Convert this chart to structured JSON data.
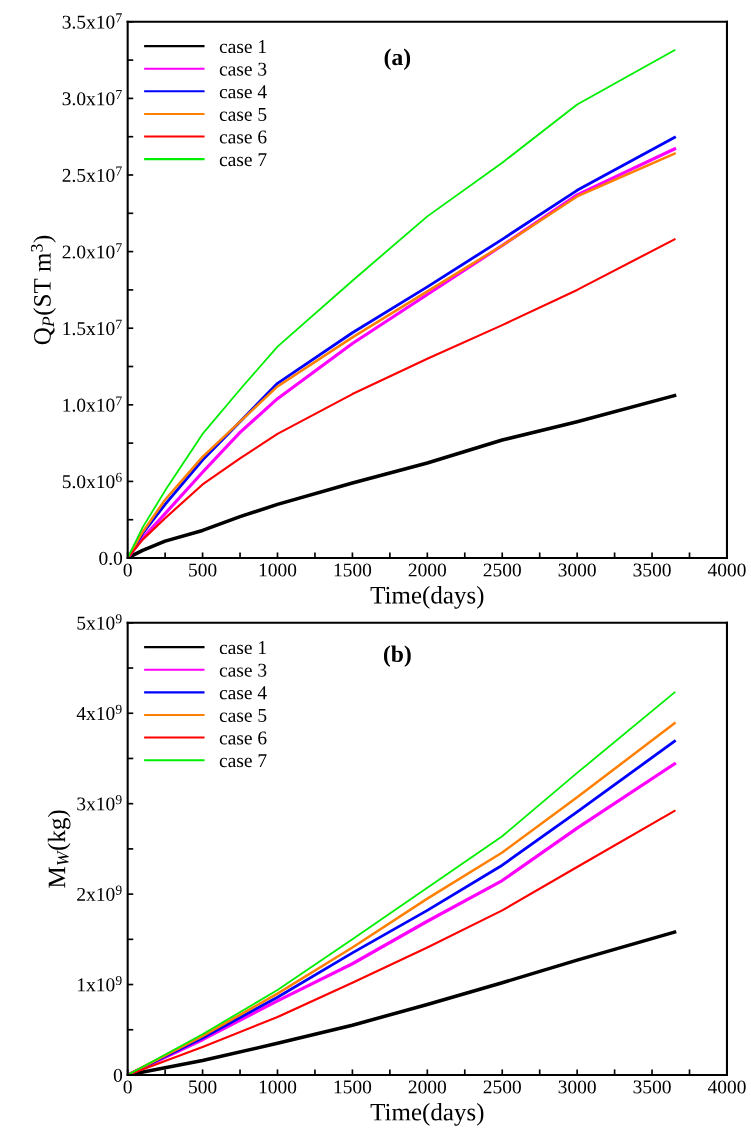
{
  "chart_data": [
    {
      "type": "line",
      "title": "(a)",
      "xlabel": "Time(days)",
      "ylabel": "Q$_{P}$(ST m$^{3}$)",
      "x": [
        0,
        100,
        250,
        500,
        750,
        1000,
        1500,
        2000,
        2500,
        3000,
        3650
      ],
      "series": [
        {
          "name": "case 1",
          "color": "#000000",
          "values": [
            0,
            500000,
            1100000,
            1800000,
            2700000,
            3500000,
            4900000,
            6200000,
            7700000,
            8900000,
            10600000
          ]
        },
        {
          "name": "case 3",
          "color": "#ff00ff",
          "values": [
            0,
            1300000,
            2900000,
            5600000,
            8200000,
            10400000,
            14000000,
            17200000,
            20400000,
            23700000,
            26700000
          ]
        },
        {
          "name": "case 4",
          "color": "#0000ff",
          "values": [
            0,
            1600000,
            3500000,
            6400000,
            8900000,
            11400000,
            14700000,
            17700000,
            20800000,
            24000000,
            27450000
          ]
        },
        {
          "name": "case 5",
          "color": "#ff7f00",
          "values": [
            0,
            1700000,
            3800000,
            6600000,
            8900000,
            11200000,
            14400000,
            17400000,
            20400000,
            23600000,
            26400000
          ]
        },
        {
          "name": "case 6",
          "color": "#ff0000",
          "values": [
            0,
            1200000,
            2600000,
            4800000,
            6500000,
            8100000,
            10700000,
            13000000,
            15200000,
            17500000,
            20800000
          ]
        },
        {
          "name": "case 7",
          "color": "#00ee00",
          "values": [
            0,
            2000000,
            4400000,
            8100000,
            11000000,
            13800000,
            18100000,
            22300000,
            25800000,
            29600000,
            33150000
          ]
        }
      ],
      "xlim": [
        0,
        4000
      ],
      "xticks": [
        0,
        {
          "value": 250,
          "label": null
        },
        500,
        {
          "value": 750,
          "label": null
        },
        1000,
        {
          "value": 1250,
          "label": null
        },
        1500,
        {
          "value": 1750,
          "label": null
        },
        2000,
        {
          "value": 2250,
          "label": null
        },
        2500,
        {
          "value": 2750,
          "label": null
        },
        3000,
        {
          "value": 3250,
          "label": null
        },
        3500,
        {
          "value": 3750,
          "label": null
        },
        4000
      ],
      "ylim": [
        0,
        35000000
      ],
      "yticks": [
        {
          "value": 0,
          "label": "0.0"
        },
        {
          "value": 2500000,
          "label": null
        },
        {
          "value": 5000000,
          "label": "5.0x10$^{6}$"
        },
        {
          "value": 7500000,
          "label": null
        },
        {
          "value": 10000000,
          "label": "1.0x10$^{7}$"
        },
        {
          "value": 12500000,
          "label": null
        },
        {
          "value": 15000000,
          "label": "1.5x10$^{7}$"
        },
        {
          "value": 17500000,
          "label": null
        },
        {
          "value": 20000000,
          "label": "2.0x10$^{7}$"
        },
        {
          "value": 22500000,
          "label": null
        },
        {
          "value": 25000000,
          "label": "2.5x10$^{7}$"
        },
        {
          "value": 27500000,
          "label": null
        },
        {
          "value": 30000000,
          "label": "3.0x10$^{7}$"
        },
        {
          "value": 32500000,
          "label": null
        },
        {
          "value": 35000000,
          "label": "3.5x10$^{7}$"
        }
      ],
      "legend": "top left",
      "grid": false,
      "line_style": "solid",
      "marker": "none"
    },
    {
      "type": "line",
      "title": "(b)",
      "xlabel": "Time(days)",
      "ylabel": "M$_{W}$(kg)",
      "x": [
        0,
        500,
        1000,
        1500,
        2000,
        2500,
        3000,
        3650
      ],
      "series": [
        {
          "name": "case 1",
          "color": "#000000",
          "values": [
            0,
            160000000,
            350000000,
            550000000,
            780000000,
            1020000000,
            1270000000,
            1580000000
          ]
        },
        {
          "name": "case 3",
          "color": "#ff00ff",
          "values": [
            0,
            390000000,
            820000000,
            1230000000,
            1700000000,
            2150000000,
            2730000000,
            3440000000
          ]
        },
        {
          "name": "case 4",
          "color": "#0000ff",
          "values": [
            0,
            410000000,
            860000000,
            1350000000,
            1820000000,
            2320000000,
            2910000000,
            3690000000
          ]
        },
        {
          "name": "case 5",
          "color": "#ff7f00",
          "values": [
            0,
            430000000,
            900000000,
            1410000000,
            1950000000,
            2460000000,
            3070000000,
            3890000000
          ]
        },
        {
          "name": "case 6",
          "color": "#ff0000",
          "values": [
            0,
            310000000,
            640000000,
            1020000000,
            1410000000,
            1820000000,
            2300000000,
            2920000000
          ]
        },
        {
          "name": "case 7",
          "color": "#00ee00",
          "values": [
            0,
            450000000,
            940000000,
            1500000000,
            2070000000,
            2640000000,
            3340000000,
            4230000000
          ]
        }
      ],
      "xlim": [
        0,
        4000
      ],
      "xticks": [
        0,
        {
          "value": 250,
          "label": null
        },
        500,
        {
          "value": 750,
          "label": null
        },
        1000,
        {
          "value": 1250,
          "label": null
        },
        1500,
        {
          "value": 1750,
          "label": null
        },
        2000,
        {
          "value": 2250,
          "label": null
        },
        2500,
        {
          "value": 2750,
          "label": null
        },
        3000,
        {
          "value": 3250,
          "label": null
        },
        3500,
        {
          "value": 3750,
          "label": null
        },
        4000
      ],
      "ylim": [
        0,
        5000000000
      ],
      "yticks": [
        {
          "value": 0,
          "label": "0"
        },
        {
          "value": 500000000,
          "label": null
        },
        {
          "value": 1000000000,
          "label": "1x10$^{9}$"
        },
        {
          "value": 1500000000,
          "label": null
        },
        {
          "value": 2000000000,
          "label": "2x10$^{9}$"
        },
        {
          "value": 2500000000,
          "label": null
        },
        {
          "value": 3000000000,
          "label": "3x10$^{9}$"
        },
        {
          "value": 3500000000,
          "label": null
        },
        {
          "value": 4000000000,
          "label": "4x10$^{9}$"
        },
        {
          "value": 4500000000,
          "label": null
        },
        {
          "value": 5000000000,
          "label": "5x10$^{9}$"
        }
      ],
      "legend": "top left",
      "grid": false,
      "line_style": "solid",
      "marker": "none"
    }
  ]
}
